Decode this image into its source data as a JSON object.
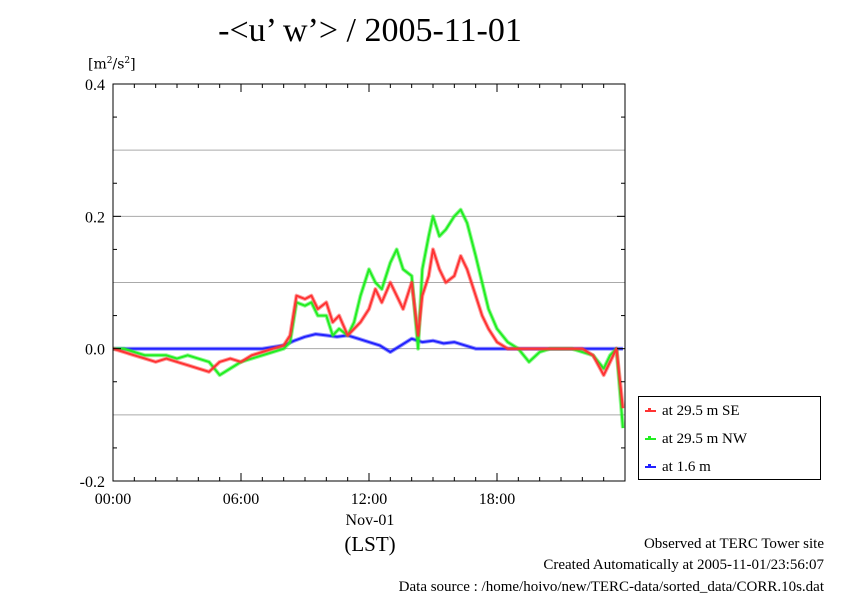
{
  "title": "-<u’ w’> / 2005-11-01",
  "units": {
    "base": "[m",
    "sup1": "2",
    "mid": "/s",
    "sup2": "2",
    "end": "]"
  },
  "date_label": "Nov-01",
  "lst_label": "(LST)",
  "footer": {
    "line1": "Observed at TERC Tower site",
    "line2": "Created Automatically at 2005-11-01/23:56:07",
    "line3": "Data source : /home/hoivo/new/TERC-data/sorted_data/CORR.10s.dat"
  },
  "colors": {
    "se": "#ff3333",
    "nw": "#22ee22",
    "low": "#2222ff",
    "grid": "#aaaaaa"
  },
  "chart_data": {
    "type": "line",
    "title": "-<u’ w’> / 2005-11-01",
    "xlabel": "(LST)",
    "ylabel": "[m2/s2]",
    "xlim": [
      0,
      24
    ],
    "ylim": [
      -0.2,
      0.4
    ],
    "yticks": [
      -0.2,
      0.0,
      0.2,
      0.4
    ],
    "ytick_labels": [
      "-0.2",
      "0.0",
      "0.2",
      "0.4"
    ],
    "xticks": [
      0,
      6,
      12,
      18
    ],
    "xtick_labels": [
      "00:00",
      "06:00",
      "12:00",
      "18:00"
    ],
    "grid": true,
    "legend_position": "outside-right-bottom",
    "series": [
      {
        "name": "at 29.5 m SE",
        "color": "#ff3333",
        "x": [
          0,
          0.5,
          1,
          1.5,
          2,
          2.5,
          3,
          3.5,
          4,
          4.5,
          5,
          5.5,
          6,
          6.5,
          7,
          7.5,
          8,
          8.3,
          8.6,
          9,
          9.3,
          9.6,
          10,
          10.3,
          10.6,
          11,
          11.3,
          11.6,
          12,
          12.3,
          12.6,
          13,
          13.3,
          13.6,
          14,
          14.3,
          14.5,
          14.8,
          15,
          15.3,
          15.6,
          16,
          16.3,
          16.6,
          17,
          17.3,
          17.6,
          18,
          18.5,
          19,
          19.5,
          20,
          20.5,
          21,
          21.5,
          22,
          22.5,
          23,
          23.3,
          23.6,
          23.9
        ],
        "y": [
          0.0,
          -0.005,
          -0.01,
          -0.015,
          -0.02,
          -0.015,
          -0.02,
          -0.025,
          -0.03,
          -0.035,
          -0.02,
          -0.015,
          -0.02,
          -0.01,
          -0.005,
          0.0,
          0.005,
          0.02,
          0.08,
          0.075,
          0.08,
          0.06,
          0.07,
          0.04,
          0.05,
          0.02,
          0.03,
          0.04,
          0.06,
          0.09,
          0.07,
          0.1,
          0.08,
          0.06,
          0.1,
          0.02,
          0.08,
          0.11,
          0.15,
          0.12,
          0.1,
          0.11,
          0.14,
          0.12,
          0.08,
          0.05,
          0.03,
          0.01,
          0.0,
          0.0,
          0.0,
          0.0,
          0.0,
          0.0,
          0.0,
          0.0,
          -0.01,
          -0.04,
          -0.02,
          0.0,
          -0.09
        ]
      },
      {
        "name": "at 29.5 m NW",
        "color": "#22ee22",
        "x": [
          0,
          0.5,
          1,
          1.5,
          2,
          2.5,
          3,
          3.5,
          4,
          4.5,
          5,
          5.5,
          6,
          6.5,
          7,
          7.5,
          8,
          8.3,
          8.6,
          9,
          9.3,
          9.6,
          10,
          10.3,
          10.6,
          11,
          11.3,
          11.6,
          12,
          12.3,
          12.6,
          13,
          13.3,
          13.6,
          14,
          14.3,
          14.5,
          14.8,
          15,
          15.3,
          15.6,
          16,
          16.3,
          16.6,
          17,
          17.3,
          17.6,
          18,
          18.5,
          19,
          19.5,
          20,
          20.5,
          21,
          21.5,
          22,
          22.5,
          23,
          23.3,
          23.6,
          23.9
        ],
        "y": [
          0.0,
          0.0,
          -0.005,
          -0.01,
          -0.01,
          -0.01,
          -0.015,
          -0.01,
          -0.015,
          -0.02,
          -0.04,
          -0.03,
          -0.02,
          -0.015,
          -0.01,
          -0.005,
          0.0,
          0.01,
          0.07,
          0.065,
          0.07,
          0.05,
          0.05,
          0.02,
          0.03,
          0.02,
          0.04,
          0.08,
          0.12,
          0.1,
          0.09,
          0.13,
          0.15,
          0.12,
          0.11,
          0.0,
          0.12,
          0.17,
          0.2,
          0.17,
          0.18,
          0.2,
          0.21,
          0.19,
          0.14,
          0.1,
          0.06,
          0.03,
          0.01,
          0.0,
          -0.02,
          -0.005,
          0.0,
          0.0,
          0.0,
          -0.005,
          -0.01,
          -0.03,
          -0.01,
          0.0,
          -0.12
        ]
      },
      {
        "name": "at 1.6 m",
        "color": "#2222ff",
        "x": [
          0,
          1,
          2,
          3,
          4,
          5,
          6,
          7,
          8,
          8.5,
          9,
          9.5,
          10,
          10.5,
          11,
          11.5,
          12,
          12.5,
          13,
          13.5,
          14,
          14.5,
          15,
          15.5,
          16,
          16.5,
          17,
          17.5,
          18,
          19,
          20,
          21,
          22,
          23,
          23.9
        ],
        "y": [
          0.0,
          0.0,
          0.0,
          0.0,
          0.0,
          0.0,
          0.0,
          0.0,
          0.005,
          0.012,
          0.018,
          0.022,
          0.02,
          0.018,
          0.02,
          0.015,
          0.01,
          0.005,
          -0.005,
          0.005,
          0.015,
          0.01,
          0.012,
          0.008,
          0.01,
          0.005,
          0.0,
          0.0,
          0.0,
          0.0,
          0.0,
          0.0,
          0.0,
          0.0,
          0.0
        ]
      }
    ]
  }
}
